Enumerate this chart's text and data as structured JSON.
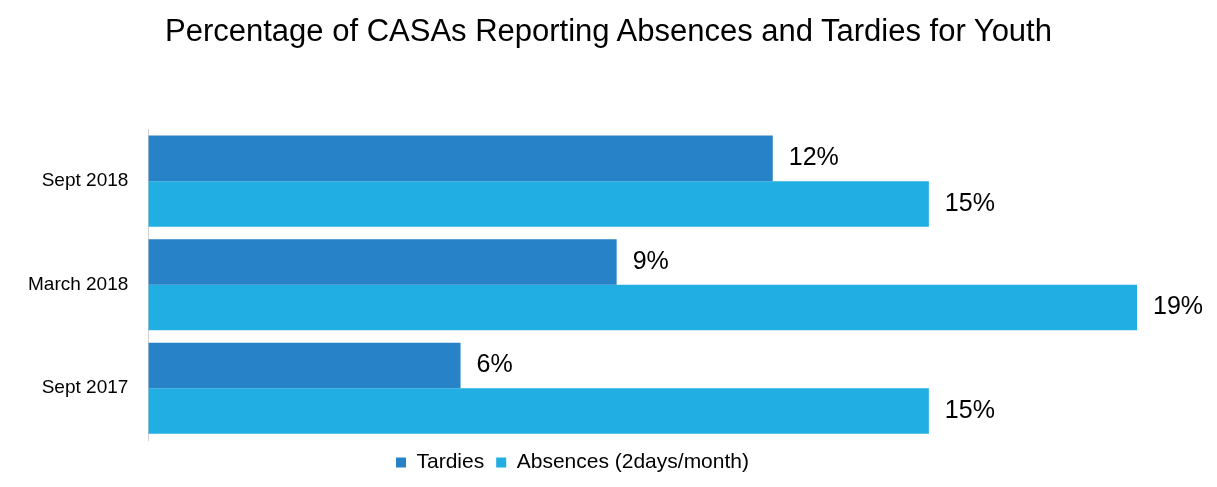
{
  "chart_data": {
    "type": "bar",
    "orientation": "horizontal",
    "title": "Percentage of CASAs Reporting Absences and Tardies for Youth",
    "categories": [
      "Sept 2018",
      "March 2018",
      "Sept 2017"
    ],
    "series": [
      {
        "name": "Tardies",
        "color": "#2882c8",
        "values": [
          12,
          9,
          6
        ],
        "value_labels": [
          "12%",
          "9%",
          "6%"
        ]
      },
      {
        "name": "Absences (2days/month)",
        "color": "#20aee3",
        "values": [
          15,
          19,
          15
        ],
        "value_labels": [
          "15%",
          "19%",
          "15%"
        ]
      }
    ],
    "xlim": [
      0,
      19
    ],
    "tick_labels": "y",
    "grid": false,
    "legend": "bottom"
  }
}
